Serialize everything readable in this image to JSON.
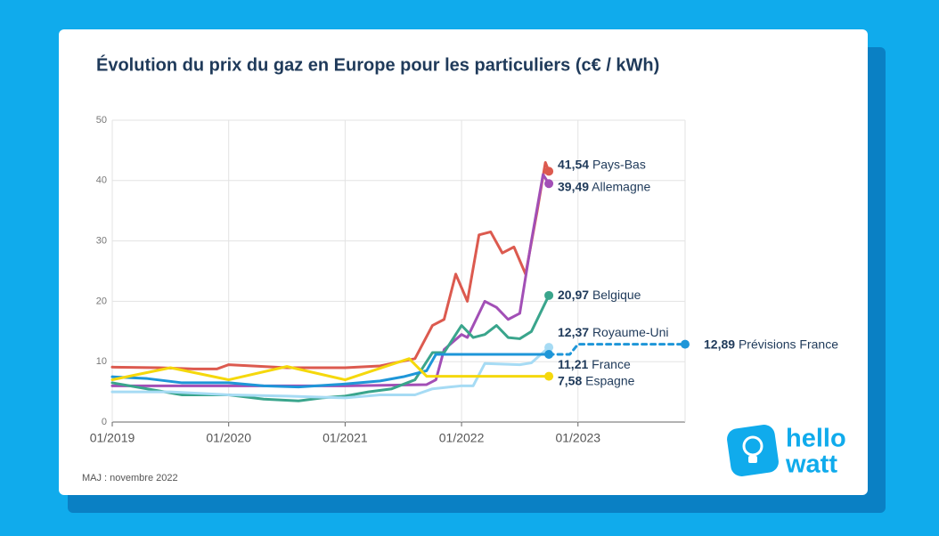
{
  "chart_data": {
    "type": "line",
    "title": "Évolution du prix du gaz en Europe pour les particuliers (c€ / kWh)",
    "footnote": "MAJ : novembre 2022",
    "xlim": [
      2019,
      2023.92
    ],
    "xticks": [
      {
        "value": 2019,
        "label": "01/2019"
      },
      {
        "value": 2020,
        "label": "01/2020"
      },
      {
        "value": 2021,
        "label": "01/2021"
      },
      {
        "value": 2022,
        "label": "01/2022"
      },
      {
        "value": 2023,
        "label": "01/2023"
      }
    ],
    "ylim": [
      0,
      50
    ],
    "yticks": [
      0,
      10,
      20,
      30,
      40,
      50
    ],
    "grid": true,
    "series": [
      {
        "name": "Pays-Bas",
        "color": "#dc5a4f",
        "x": [
          2019,
          2019.4,
          2019.7,
          2019.9,
          2020.0,
          2020.5,
          2021.0,
          2021.3,
          2021.6,
          2021.75,
          2021.85,
          2021.95,
          2022.05,
          2022.15,
          2022.25,
          2022.35,
          2022.45,
          2022.55,
          2022.65,
          2022.72,
          2022.75
        ],
        "values": [
          9.1,
          9.0,
          8.8,
          8.8,
          9.5,
          9.0,
          9.0,
          9.3,
          10.5,
          16,
          17,
          24.5,
          20,
          31,
          31.5,
          28,
          29,
          24.5,
          35,
          43,
          41.54
        ],
        "value_labels": [
          "",
          "",
          "",
          "",
          "",
          "",
          "",
          "",
          "",
          "",
          "",
          "",
          "",
          "",
          "",
          "",
          "",
          "",
          "",
          "",
          "41,54"
        ]
      },
      {
        "name": "Allemagne",
        "color": "#a24fb6",
        "x": [
          2019,
          2020,
          2021,
          2021.7,
          2021.78,
          2021.85,
          2022.0,
          2022.05,
          2022.2,
          2022.3,
          2022.4,
          2022.5,
          2022.6,
          2022.7,
          2022.75
        ],
        "values": [
          6,
          6,
          6,
          6.2,
          7,
          12,
          14.5,
          14,
          20,
          19,
          17,
          18,
          30,
          41,
          39.49
        ],
        "value_labels": [
          "",
          "",
          "",
          "",
          "",
          "",
          "",
          "",
          "",
          "",
          "",
          "",
          "",
          "",
          "39,49"
        ]
      },
      {
        "name": "Belgique",
        "color": "#3aa58c",
        "x": [
          2019,
          2019.3,
          2019.6,
          2020.0,
          2020.3,
          2020.6,
          2020.8,
          2021.0,
          2021.2,
          2021.4,
          2021.6,
          2021.75,
          2021.85,
          2022.0,
          2022.1,
          2022.2,
          2022.3,
          2022.4,
          2022.5,
          2022.6,
          2022.75
        ],
        "values": [
          6.5,
          5.5,
          4.5,
          4.5,
          3.8,
          3.5,
          4,
          4.3,
          5,
          5.5,
          7,
          11.5,
          11.5,
          16,
          14,
          14.5,
          16,
          14,
          13.8,
          15,
          20.97
        ],
        "value_labels": [
          "",
          "",
          "",
          "",
          "",
          "",
          "",
          "",
          "",
          "",
          "",
          "",
          "",
          "",
          "",
          "",
          "",
          "",
          "",
          "",
          "20,97"
        ]
      },
      {
        "name": "Royaume-Uni",
        "color": "#a6dbf4",
        "x": [
          2019,
          2019.5,
          2020,
          2020.5,
          2021,
          2021.3,
          2021.6,
          2021.75,
          2021.9,
          2022.0,
          2022.1,
          2022.2,
          2022.5,
          2022.6,
          2022.75
        ],
        "values": [
          5,
          5,
          4.5,
          4.3,
          4,
          4.5,
          4.5,
          5.5,
          5.8,
          6,
          6,
          9.7,
          9.5,
          9.8,
          12.37
        ],
        "value_labels": [
          "",
          "",
          "",
          "",
          "",
          "",
          "",
          "",
          "",
          "",
          "",
          "",
          "",
          "",
          "12,37"
        ]
      },
      {
        "name": "France",
        "color": "#1e96d8",
        "x": [
          2019,
          2019.3,
          2019.6,
          2020,
          2020.3,
          2020.6,
          2021,
          2021.3,
          2021.5,
          2021.7,
          2021.78,
          2022.75
        ],
        "values": [
          7.5,
          7.2,
          6.5,
          6.5,
          6,
          5.8,
          6.3,
          6.8,
          7.5,
          8.5,
          11.21,
          11.21
        ],
        "value_labels": [
          "",
          "",
          "",
          "",
          "",
          "",
          "",
          "",
          "",
          "",
          "",
          "11,21"
        ]
      },
      {
        "name": "Espagne",
        "color": "#f5d80c",
        "x": [
          2019,
          2019.5,
          2020,
          2020.5,
          2021,
          2021.55,
          2021.7,
          2022.75
        ],
        "values": [
          7,
          9,
          7,
          9.2,
          7,
          10.5,
          7.58,
          7.58
        ],
        "value_labels": [
          "",
          "",
          "",
          "",
          "",
          "",
          "",
          "7,58"
        ]
      },
      {
        "name": "Prévisions France",
        "color": "#1e96d8",
        "dashed": true,
        "x": [
          2022.75,
          2022.93,
          2023.0,
          2023.92
        ],
        "values": [
          11.21,
          11.21,
          12.89,
          12.89
        ],
        "value_labels": [
          "",
          "",
          "",
          "12,89"
        ]
      }
    ]
  },
  "brand": {
    "logo": [
      "hello",
      "watt"
    ]
  }
}
